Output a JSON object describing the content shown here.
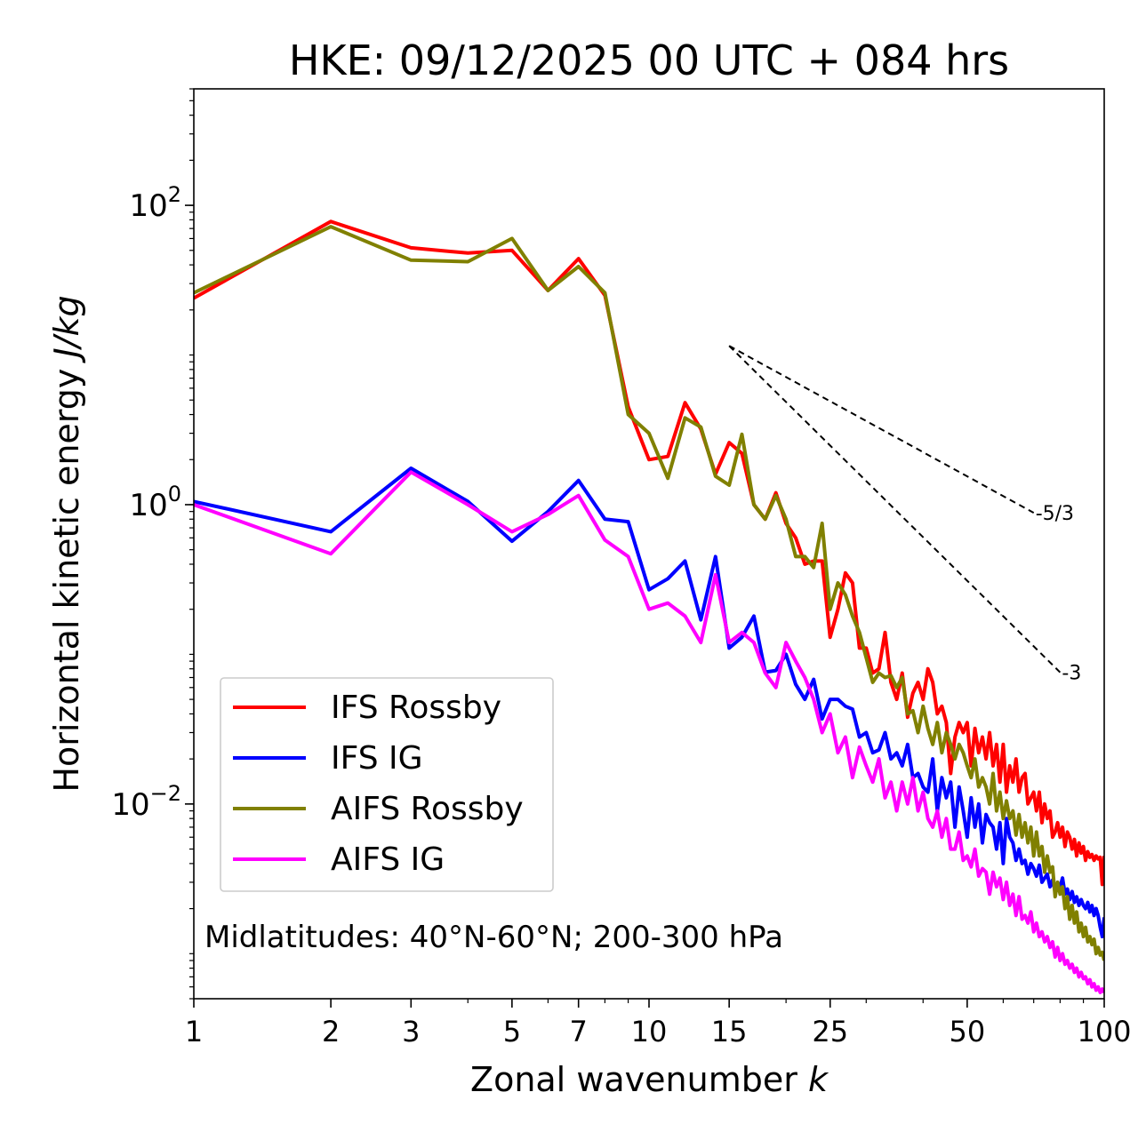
{
  "chart_data": {
    "type": "line",
    "title": "HKE: 09/12/2025 00 UTC + 084 hrs",
    "xlabel": "Zonal wavenumber",
    "xlabel_var": "k",
    "ylabel": "Horizontal kinetic energy",
    "ylabel_units": "J/kg",
    "xscale": "log",
    "yscale": "log",
    "xlim": [
      1,
      100
    ],
    "ylim": [
      0.0005,
      600
    ],
    "x_ticks": [
      {
        "value": 1,
        "label": "1"
      },
      {
        "value": 2,
        "label": "2"
      },
      {
        "value": 3,
        "label": "3"
      },
      {
        "value": 5,
        "label": "5"
      },
      {
        "value": 7,
        "label": "7"
      },
      {
        "value": 10,
        "label": "10"
      },
      {
        "value": 15,
        "label": "15"
      },
      {
        "value": 25,
        "label": "25"
      },
      {
        "value": 50,
        "label": "50"
      },
      {
        "value": 100,
        "label": "100"
      }
    ],
    "y_ticks": [
      {
        "value": 100,
        "base": "10",
        "exp": "2"
      },
      {
        "value": 1,
        "base": "10",
        "exp": "0"
      },
      {
        "value": 0.01,
        "base": "10",
        "exp": "−2"
      }
    ],
    "legend_position": "lower-left",
    "annotation": "Midlatitudes: 40°N-60°N; 200-300 hPa",
    "reference_slopes": [
      {
        "label": "-5/3",
        "slope": -1.6667,
        "x_start": 15,
        "x_end": 70,
        "y_start": 11.5
      },
      {
        "label": "-3",
        "slope": -3,
        "x_start": 15,
        "x_end": 80,
        "y_start": 11.5
      }
    ],
    "x": [
      1,
      2,
      3,
      4,
      5,
      6,
      7,
      8,
      9,
      10,
      11,
      12,
      13,
      14,
      15,
      16,
      17,
      18,
      19,
      20,
      21,
      22,
      23,
      24,
      25,
      26,
      27,
      28,
      29,
      30,
      31,
      32,
      33,
      34,
      35,
      36,
      37,
      38,
      39,
      40,
      41,
      42,
      43,
      44,
      45,
      46,
      47,
      48,
      49,
      50,
      51,
      52,
      53,
      54,
      55,
      56,
      57,
      58,
      59,
      60,
      61,
      62,
      63,
      64,
      65,
      66,
      67,
      68,
      69,
      70,
      71,
      72,
      73,
      74,
      75,
      76,
      77,
      78,
      79,
      80,
      81,
      82,
      83,
      84,
      85,
      86,
      87,
      88,
      89,
      90,
      91,
      92,
      93,
      94,
      95,
      96,
      97,
      98,
      99,
      100
    ],
    "series": [
      {
        "name": "IFS Rossby",
        "color": "#ff0000",
        "values": [
          24,
          78,
          52,
          48,
          50,
          27,
          44,
          25,
          4.5,
          2,
          2.1,
          4.8,
          3.2,
          1.6,
          2.6,
          2.2,
          1.0,
          0.8,
          1.2,
          0.75,
          0.6,
          0.4,
          0.42,
          0.42,
          0.13,
          0.2,
          0.35,
          0.3,
          0.11,
          0.11,
          0.075,
          0.08,
          0.14,
          0.065,
          0.05,
          0.075,
          0.038,
          0.055,
          0.065,
          0.05,
          0.08,
          0.065,
          0.04,
          0.045,
          0.035,
          0.016,
          0.028,
          0.035,
          0.03,
          0.035,
          0.018,
          0.032,
          0.022,
          0.028,
          0.02,
          0.03,
          0.018,
          0.025,
          0.014,
          0.025,
          0.012,
          0.018,
          0.014,
          0.02,
          0.012,
          0.015,
          0.016,
          0.01,
          0.011,
          0.012,
          0.009,
          0.012,
          0.0075,
          0.01,
          0.008,
          0.009,
          0.006,
          0.0065,
          0.0075,
          0.006,
          0.007,
          0.0052,
          0.0065,
          0.006,
          0.005,
          0.0058,
          0.0045,
          0.0055,
          0.0047,
          0.0052,
          0.0042,
          0.0048,
          0.0044,
          0.0046,
          0.0042,
          0.0045,
          0.0043,
          0.0044,
          0.0029,
          0.0045
        ]
      },
      {
        "name": "IFS IG",
        "color": "#0000ff",
        "values": [
          1.05,
          0.66,
          1.75,
          1.05,
          0.57,
          0.9,
          1.45,
          0.8,
          0.77,
          0.27,
          0.32,
          0.42,
          0.17,
          0.45,
          0.11,
          0.13,
          0.18,
          0.076,
          0.078,
          0.1,
          0.063,
          0.05,
          0.068,
          0.037,
          0.05,
          0.05,
          0.045,
          0.043,
          0.028,
          0.03,
          0.022,
          0.023,
          0.03,
          0.02,
          0.022,
          0.018,
          0.025,
          0.015,
          0.016,
          0.013,
          0.012,
          0.02,
          0.009,
          0.015,
          0.011,
          0.014,
          0.007,
          0.013,
          0.009,
          0.006,
          0.011,
          0.007,
          0.01,
          0.0055,
          0.0085,
          0.0075,
          0.007,
          0.005,
          0.0075,
          0.004,
          0.008,
          0.006,
          0.0055,
          0.0042,
          0.005,
          0.004,
          0.0042,
          0.0034,
          0.004,
          0.0037,
          0.0033,
          0.0039,
          0.003,
          0.0032,
          0.0034,
          0.0028,
          0.0031,
          0.0026,
          0.0029,
          0.0028,
          0.0032,
          0.0025,
          0.0027,
          0.0023,
          0.0026,
          0.0022,
          0.0024,
          0.0021,
          0.0023,
          0.0021,
          0.002,
          0.0022,
          0.0019,
          0.0021,
          0.0018,
          0.002,
          0.0018,
          0.0015,
          0.0013,
          0.00175
        ]
      },
      {
        "name": "AIFS Rossby",
        "color": "#808000",
        "values": [
          26,
          72,
          43,
          42,
          60,
          27,
          39,
          26,
          4,
          3,
          1.5,
          3.8,
          3.3,
          1.55,
          1.35,
          2.95,
          1.0,
          0.8,
          1.15,
          0.8,
          0.45,
          0.45,
          0.38,
          0.75,
          0.2,
          0.3,
          0.25,
          0.18,
          0.14,
          0.095,
          0.065,
          0.075,
          0.07,
          0.072,
          0.06,
          0.07,
          0.04,
          0.042,
          0.03,
          0.045,
          0.032,
          0.025,
          0.035,
          0.022,
          0.03,
          0.025,
          0.02,
          0.025,
          0.022,
          0.018,
          0.015,
          0.02,
          0.013,
          0.015,
          0.013,
          0.01,
          0.016,
          0.009,
          0.012,
          0.008,
          0.0105,
          0.008,
          0.009,
          0.0062,
          0.0085,
          0.006,
          0.0075,
          0.0055,
          0.007,
          0.0045,
          0.0065,
          0.0045,
          0.0052,
          0.0035,
          0.0045,
          0.0035,
          0.0038,
          0.0024,
          0.003,
          0.0025,
          0.0028,
          0.002,
          0.0024,
          0.0017,
          0.0021,
          0.0016,
          0.0019,
          0.0014,
          0.0016,
          0.0013,
          0.0015,
          0.0012,
          0.0013,
          0.00115,
          0.00125,
          0.001,
          0.0011,
          0.00098,
          0.00102,
          0.0009
        ]
      },
      {
        "name": "AIFS IG",
        "color": "#ff00ff",
        "values": [
          1.0,
          0.47,
          1.65,
          1.0,
          0.66,
          0.86,
          1.15,
          0.58,
          0.45,
          0.2,
          0.22,
          0.18,
          0.12,
          0.34,
          0.12,
          0.14,
          0.12,
          0.075,
          0.06,
          0.12,
          0.09,
          0.07,
          0.05,
          0.03,
          0.04,
          0.022,
          0.028,
          0.015,
          0.024,
          0.018,
          0.014,
          0.02,
          0.011,
          0.014,
          0.009,
          0.014,
          0.01,
          0.015,
          0.009,
          0.012,
          0.008,
          0.007,
          0.009,
          0.006,
          0.008,
          0.005,
          0.005,
          0.0065,
          0.0042,
          0.0045,
          0.0038,
          0.005,
          0.0033,
          0.0037,
          0.0035,
          0.0025,
          0.0035,
          0.0028,
          0.0032,
          0.0023,
          0.003,
          0.0021,
          0.0025,
          0.0018,
          0.0024,
          0.0017,
          0.0018,
          0.0016,
          0.0019,
          0.0014,
          0.0016,
          0.0013,
          0.0014,
          0.0012,
          0.0013,
          0.0011,
          0.0012,
          0.00095,
          0.0011,
          0.0009,
          0.001,
          0.00085,
          0.0009,
          0.0008,
          0.00085,
          0.00075,
          0.0008,
          0.0007,
          0.00075,
          0.00068,
          0.0007,
          0.00063,
          0.00067,
          0.0006,
          0.00063,
          0.00057,
          0.0006,
          0.00055,
          0.00058,
          0.00055
        ]
      }
    ]
  }
}
